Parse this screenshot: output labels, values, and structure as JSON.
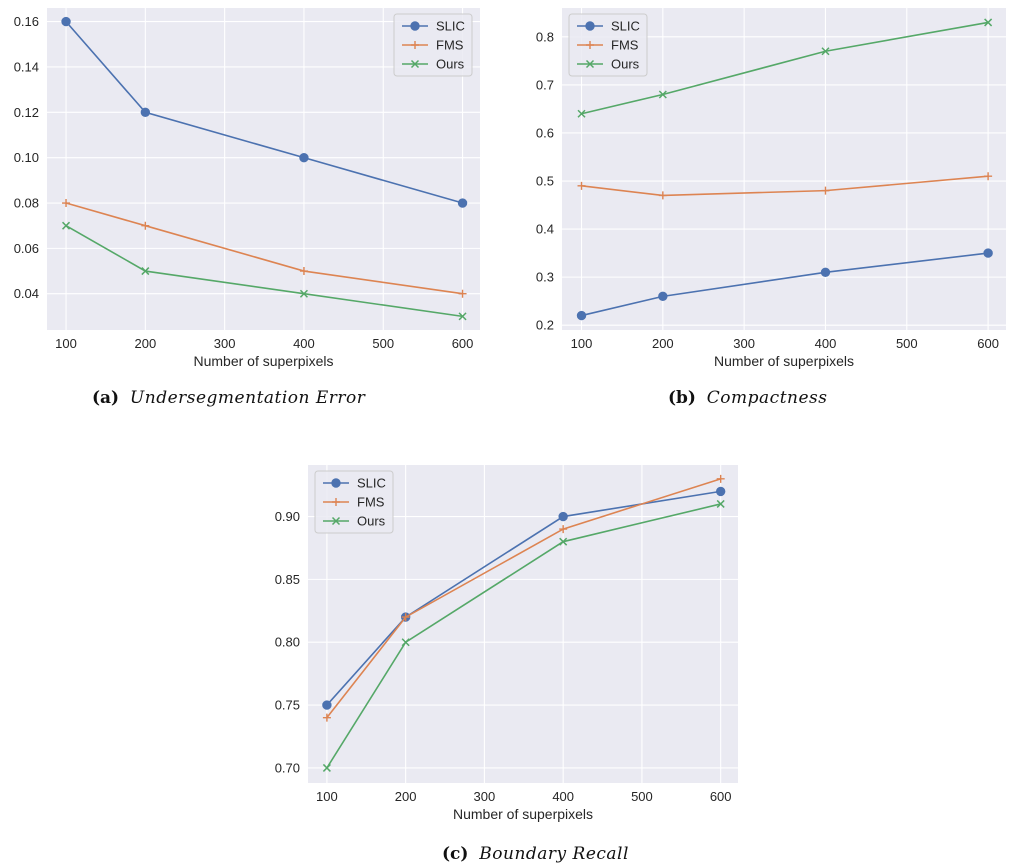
{
  "colors": {
    "slic": "#4c72b0",
    "fms": "#dd8452",
    "ours": "#55a868",
    "bg": "#eaeaf2",
    "grid": "#ffffff"
  },
  "chart_data": [
    {
      "type": "line",
      "id": "a",
      "caption_tag": "(a)",
      "caption": "Undersegmentation Error",
      "xlabel": "Number of superpixels",
      "ylabel": "",
      "x": [
        100,
        200,
        400,
        600
      ],
      "xlim": [
        76,
        622
      ],
      "ylim": [
        0.024,
        0.166
      ],
      "xticks": [
        100,
        200,
        300,
        400,
        500,
        600
      ],
      "yticks": [
        0.04,
        0.06,
        0.08,
        0.1,
        0.12,
        0.14,
        0.16
      ],
      "ytick_labels": [
        "0.04",
        "0.06",
        "0.08",
        "0.10",
        "0.12",
        "0.14",
        "0.16"
      ],
      "legend_loc": "top-right",
      "series": [
        {
          "name": "SLIC",
          "marker": "circle",
          "values": [
            0.16,
            0.12,
            0.1,
            0.08
          ]
        },
        {
          "name": "FMS",
          "marker": "plus",
          "values": [
            0.08,
            0.07,
            0.05,
            0.04
          ]
        },
        {
          "name": "Ours",
          "marker": "x",
          "values": [
            0.07,
            0.05,
            0.04,
            0.03
          ]
        }
      ]
    },
    {
      "type": "line",
      "id": "b",
      "caption_tag": "(b)",
      "caption": "Compactness",
      "xlabel": "Number of superpixels",
      "ylabel": "",
      "x": [
        100,
        200,
        400,
        600
      ],
      "xlim": [
        76,
        622
      ],
      "ylim": [
        0.19,
        0.86
      ],
      "xticks": [
        100,
        200,
        300,
        400,
        500,
        600
      ],
      "yticks": [
        0.2,
        0.3,
        0.4,
        0.5,
        0.6,
        0.7,
        0.8
      ],
      "ytick_labels": [
        "0.2",
        "0.3",
        "0.4",
        "0.5",
        "0.6",
        "0.7",
        "0.8"
      ],
      "legend_loc": "top-left",
      "series": [
        {
          "name": "SLIC",
          "marker": "circle",
          "values": [
            0.22,
            0.26,
            0.31,
            0.35
          ]
        },
        {
          "name": "FMS",
          "marker": "plus",
          "values": [
            0.49,
            0.47,
            0.48,
            0.51
          ]
        },
        {
          "name": "Ours",
          "marker": "x",
          "values": [
            0.64,
            0.68,
            0.77,
            0.83
          ]
        }
      ]
    },
    {
      "type": "line",
      "id": "c",
      "caption_tag": "(c)",
      "caption": "Boundary Recall",
      "xlabel": "Number of superpixels",
      "ylabel": "",
      "x": [
        100,
        200,
        400,
        600
      ],
      "xlim": [
        76,
        622
      ],
      "ylim": [
        0.688,
        0.941
      ],
      "xticks": [
        100,
        200,
        300,
        400,
        500,
        600
      ],
      "yticks": [
        0.7,
        0.75,
        0.8,
        0.85,
        0.9
      ],
      "ytick_labels": [
        "0.70",
        "0.75",
        "0.80",
        "0.85",
        "0.90"
      ],
      "legend_loc": "top-left",
      "series": [
        {
          "name": "SLIC",
          "marker": "circle",
          "values": [
            0.75,
            0.82,
            0.9,
            0.92
          ]
        },
        {
          "name": "FMS",
          "marker": "plus",
          "values": [
            0.74,
            0.82,
            0.89,
            0.93
          ]
        },
        {
          "name": "Ours",
          "marker": "x",
          "values": [
            0.7,
            0.8,
            0.88,
            0.91
          ]
        }
      ]
    }
  ]
}
